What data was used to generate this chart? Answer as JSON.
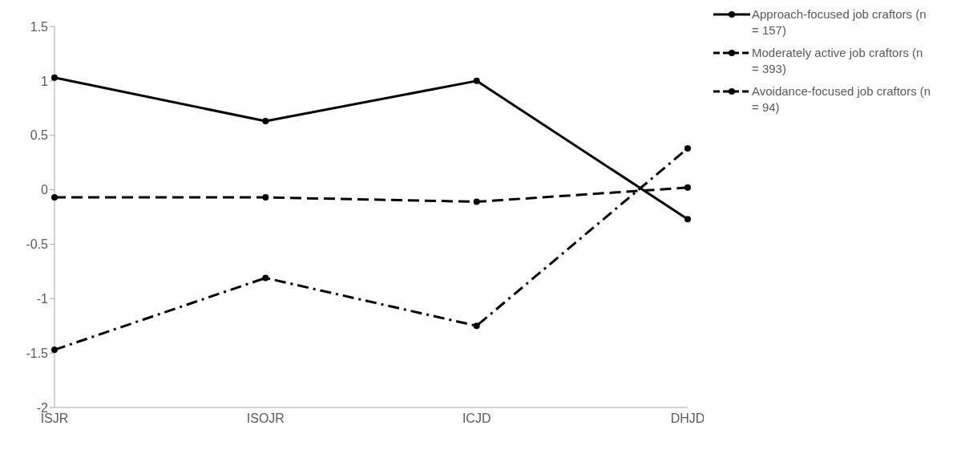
{
  "chart_data": {
    "type": "line",
    "categories": [
      "ISJR",
      "ISOJR",
      "ICJD",
      "DHJD"
    ],
    "series": [
      {
        "name": "Approach-focused job craftors (n = 157)",
        "color": "#000000",
        "line_style": "solid",
        "values": [
          1.03,
          0.63,
          1.0,
          -0.27
        ]
      },
      {
        "name": "Moderately active job craftors (n = 393)",
        "color": "#000000",
        "line_style": "dashed",
        "values": [
          -0.07,
          -0.07,
          -0.11,
          0.02
        ]
      },
      {
        "name": "Avoidance-focused job craftors (n = 94)",
        "color": "#000000",
        "line_style": "dashdot",
        "values": [
          -1.47,
          -0.81,
          -1.25,
          0.38
        ]
      }
    ],
    "ylim": [
      -2,
      1.5
    ],
    "yticks": [
      -2,
      -1.5,
      -1,
      -0.5,
      0,
      0.5,
      1,
      1.5
    ],
    "grid": false,
    "legend": "top right",
    "marker": "circle"
  }
}
